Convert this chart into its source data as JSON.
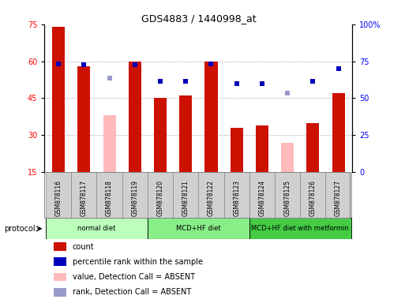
{
  "title": "GDS4883 / 1440998_at",
  "samples": [
    "GSM878116",
    "GSM878117",
    "GSM878118",
    "GSM878119",
    "GSM878120",
    "GSM878121",
    "GSM878122",
    "GSM878123",
    "GSM878124",
    "GSM878125",
    "GSM878126",
    "GSM878127"
  ],
  "count_values": [
    74,
    58,
    null,
    60,
    45,
    46,
    60,
    33,
    34,
    null,
    35,
    47
  ],
  "count_absent": [
    null,
    null,
    38,
    null,
    null,
    null,
    null,
    null,
    null,
    27,
    null,
    null
  ],
  "percentile_values": [
    59,
    58.5,
    null,
    58.5,
    52,
    52,
    59,
    51,
    51,
    null,
    52,
    57
  ],
  "percentile_absent": [
    null,
    null,
    53,
    null,
    null,
    null,
    null,
    null,
    null,
    47,
    null,
    null
  ],
  "left_ylim": [
    15,
    75
  ],
  "right_ylim": [
    0,
    100
  ],
  "left_yticks": [
    15,
    30,
    45,
    60,
    75
  ],
  "right_yticks": [
    0,
    25,
    50,
    75,
    100
  ],
  "right_yticklabels": [
    "0",
    "25",
    "50",
    "75",
    "100%"
  ],
  "protocols": [
    {
      "label": "normal diet",
      "start": 0,
      "end": 3,
      "color": "#bbffbb"
    },
    {
      "label": "MCD+HF diet",
      "start": 4,
      "end": 7,
      "color": "#88ee88"
    },
    {
      "label": "MCD+HF diet with metformin",
      "start": 8,
      "end": 11,
      "color": "#44cc44"
    }
  ],
  "bar_color_red": "#cc1100",
  "bar_color_pink": "#ffbbbb",
  "dot_color_blue": "#0000bb",
  "dot_color_lightblue": "#9999cc",
  "bar_width": 0.5,
  "grid_color": "#888888",
  "legend_items": [
    {
      "color": "#cc1100",
      "label": "count"
    },
    {
      "color": "#0000bb",
      "label": "percentile rank within the sample"
    },
    {
      "color": "#ffbbbb",
      "label": "value, Detection Call = ABSENT"
    },
    {
      "color": "#9999cc",
      "label": "rank, Detection Call = ABSENT"
    }
  ]
}
